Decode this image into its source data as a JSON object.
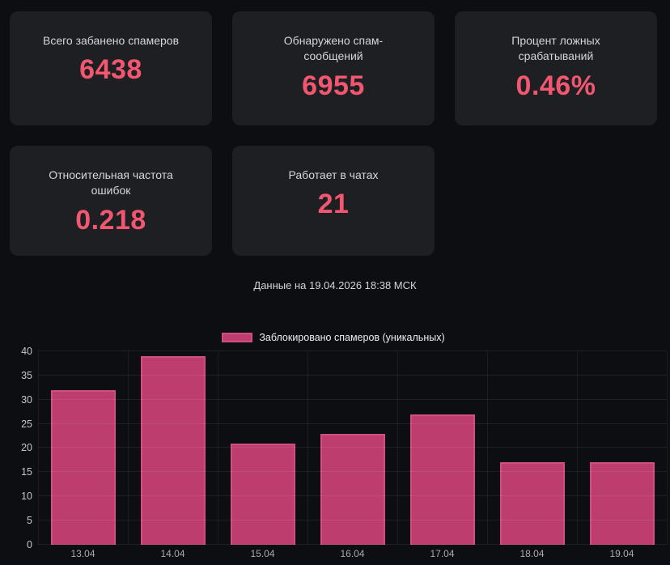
{
  "cards": [
    {
      "title": "Всего забанено спамеров",
      "value": "6438"
    },
    {
      "title": "Обнаружено спам-сообщений",
      "value": "6955"
    },
    {
      "title": "Процент ложных срабатываний",
      "value": "0.46%"
    },
    {
      "title": "Относительная частота ошибок",
      "value": "0.218"
    },
    {
      "title": "Работает в чатах",
      "value": "21"
    }
  ],
  "timestamp": "Данные на 19.04.2026 18:38 МСК",
  "chart_data": {
    "type": "bar",
    "title": "",
    "legend": "Заблокировано спамеров (уникальных)",
    "categories": [
      "13.04",
      "14.04",
      "15.04",
      "16.04",
      "17.04",
      "18.04",
      "19.04"
    ],
    "values": [
      32,
      39,
      21,
      23,
      27,
      17,
      17
    ],
    "ylim": [
      0,
      40
    ],
    "yticks": [
      0,
      5,
      10,
      15,
      20,
      25,
      30,
      35,
      40
    ],
    "grid": true,
    "legend_position": "top"
  },
  "colors": {
    "accent_value": "#f2576f",
    "bar_fill": "#bd3e6e",
    "bar_border": "#d14e82",
    "card_bg": "#1d1f23",
    "page_bg": "#0d0e11"
  }
}
